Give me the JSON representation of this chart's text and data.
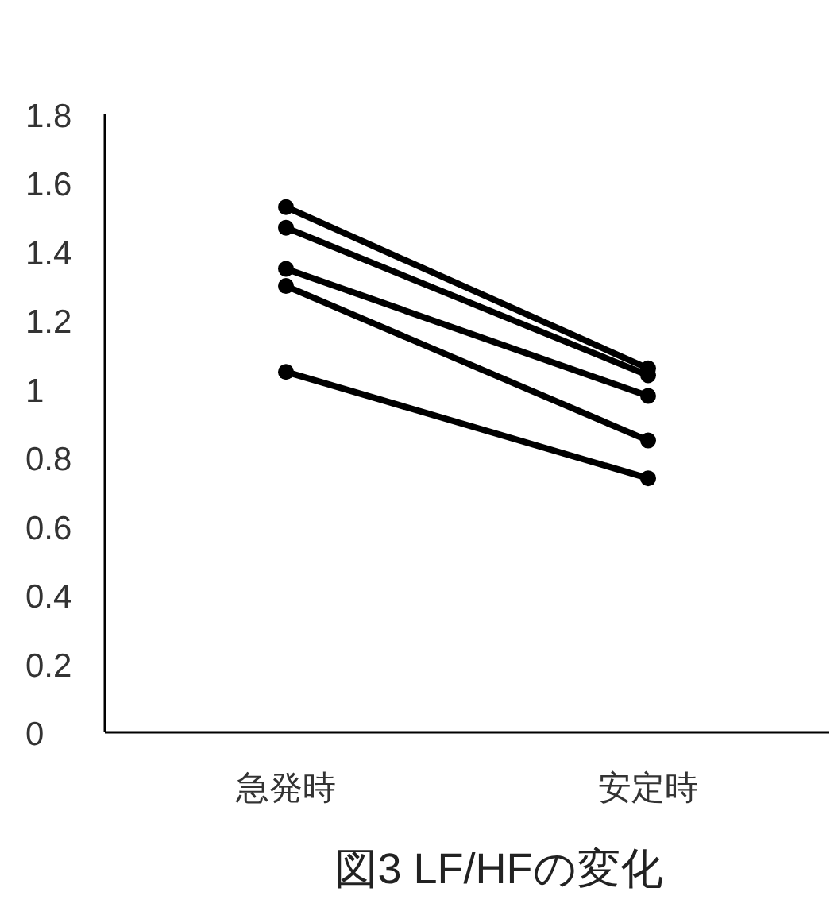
{
  "chart_data": {
    "type": "line",
    "title": "図3 LF/HFの変化",
    "categories": [
      "急発時",
      "安定時"
    ],
    "series": [
      {
        "color": "#000000",
        "values": [
          1.53,
          1.06
        ]
      },
      {
        "color": "#000000",
        "values": [
          1.47,
          1.04
        ]
      },
      {
        "color": "#000000",
        "values": [
          1.35,
          0.98
        ]
      },
      {
        "color": "#000000",
        "values": [
          1.3,
          0.85
        ]
      },
      {
        "color": "#000000",
        "values": [
          1.05,
          0.74
        ]
      }
    ],
    "ylim": [
      0,
      1.8
    ],
    "yticks": [
      0,
      0.2,
      0.4,
      0.6,
      0.8,
      1,
      1.2,
      1.4,
      1.6,
      1.8
    ],
    "marker": "circle",
    "line_style": "solid",
    "grid": false
  }
}
